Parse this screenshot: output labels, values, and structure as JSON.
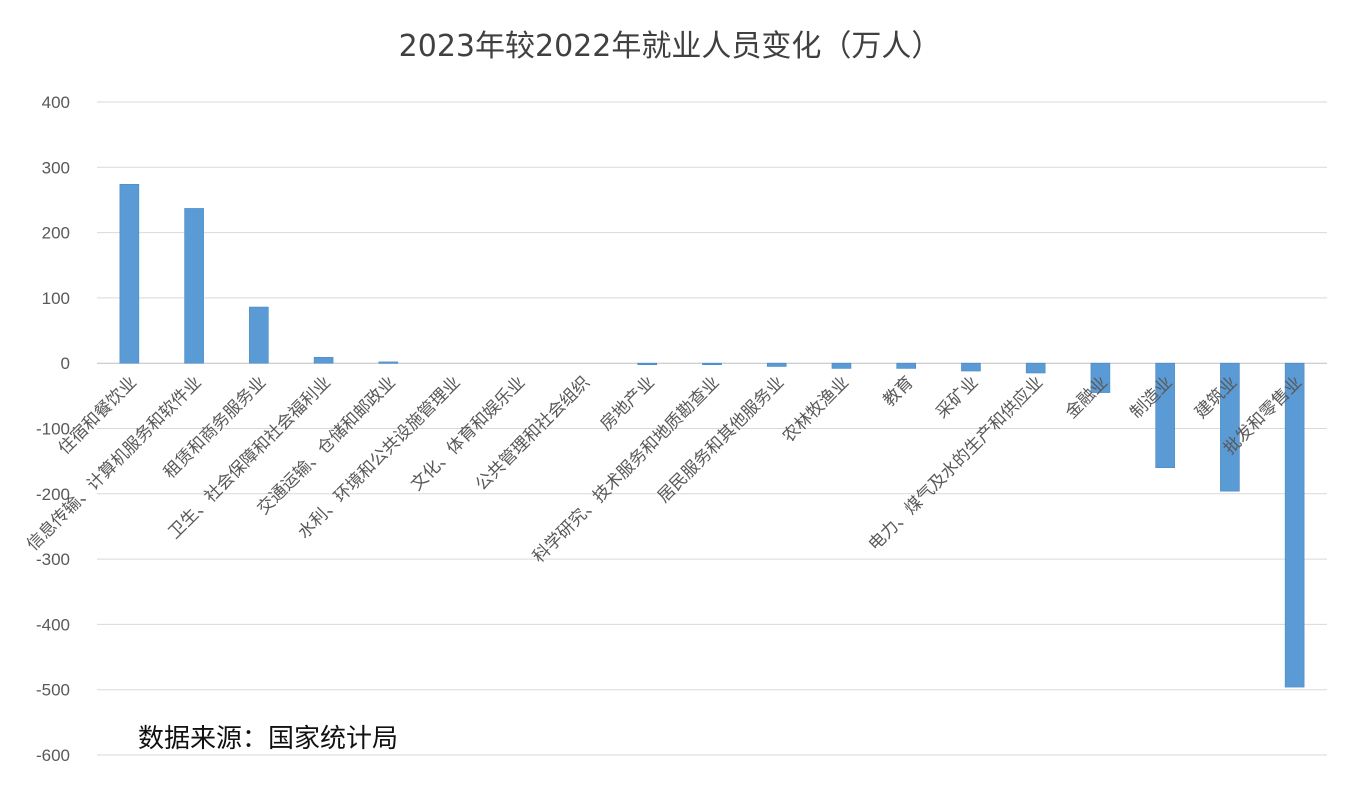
{
  "chart_data": {
    "type": "bar",
    "title": "2023年较2022年就业人员变化（万人）",
    "xlabel": "",
    "ylabel": "",
    "ylim": [
      -600,
      400
    ],
    "yticks": [
      400,
      300,
      200,
      100,
      0,
      -100,
      -200,
      -300,
      -400,
      -500,
      -600
    ],
    "grid": true,
    "categories": [
      "住宿和餐饮业",
      "信息传输、计算机服务和软件业",
      "租赁和商务服务业",
      "卫生、社会保障和社会福利业",
      "交通运输、仓储和邮政业",
      "水利、环境和公共设施管理业",
      "文化、体育和娱乐业",
      "公共管理和社会组织",
      "房地产业",
      "科学研究、技术服务和地质勘查业",
      "居民服务和其他服务业",
      "农林牧渔业",
      "教育",
      "采矿业",
      "电力、煤气及水的生产和供应业",
      "金融业",
      "制造业",
      "建筑业",
      "批发和零售业"
    ],
    "values": [
      274,
      237,
      86,
      9,
      2,
      0,
      0,
      0,
      -2,
      -2,
      -5,
      -8,
      -8,
      -12,
      -15,
      -45,
      -160,
      -196,
      -496
    ],
    "bar_color": "#5b9bd5"
  },
  "source_note": "数据来源：国家统计局"
}
